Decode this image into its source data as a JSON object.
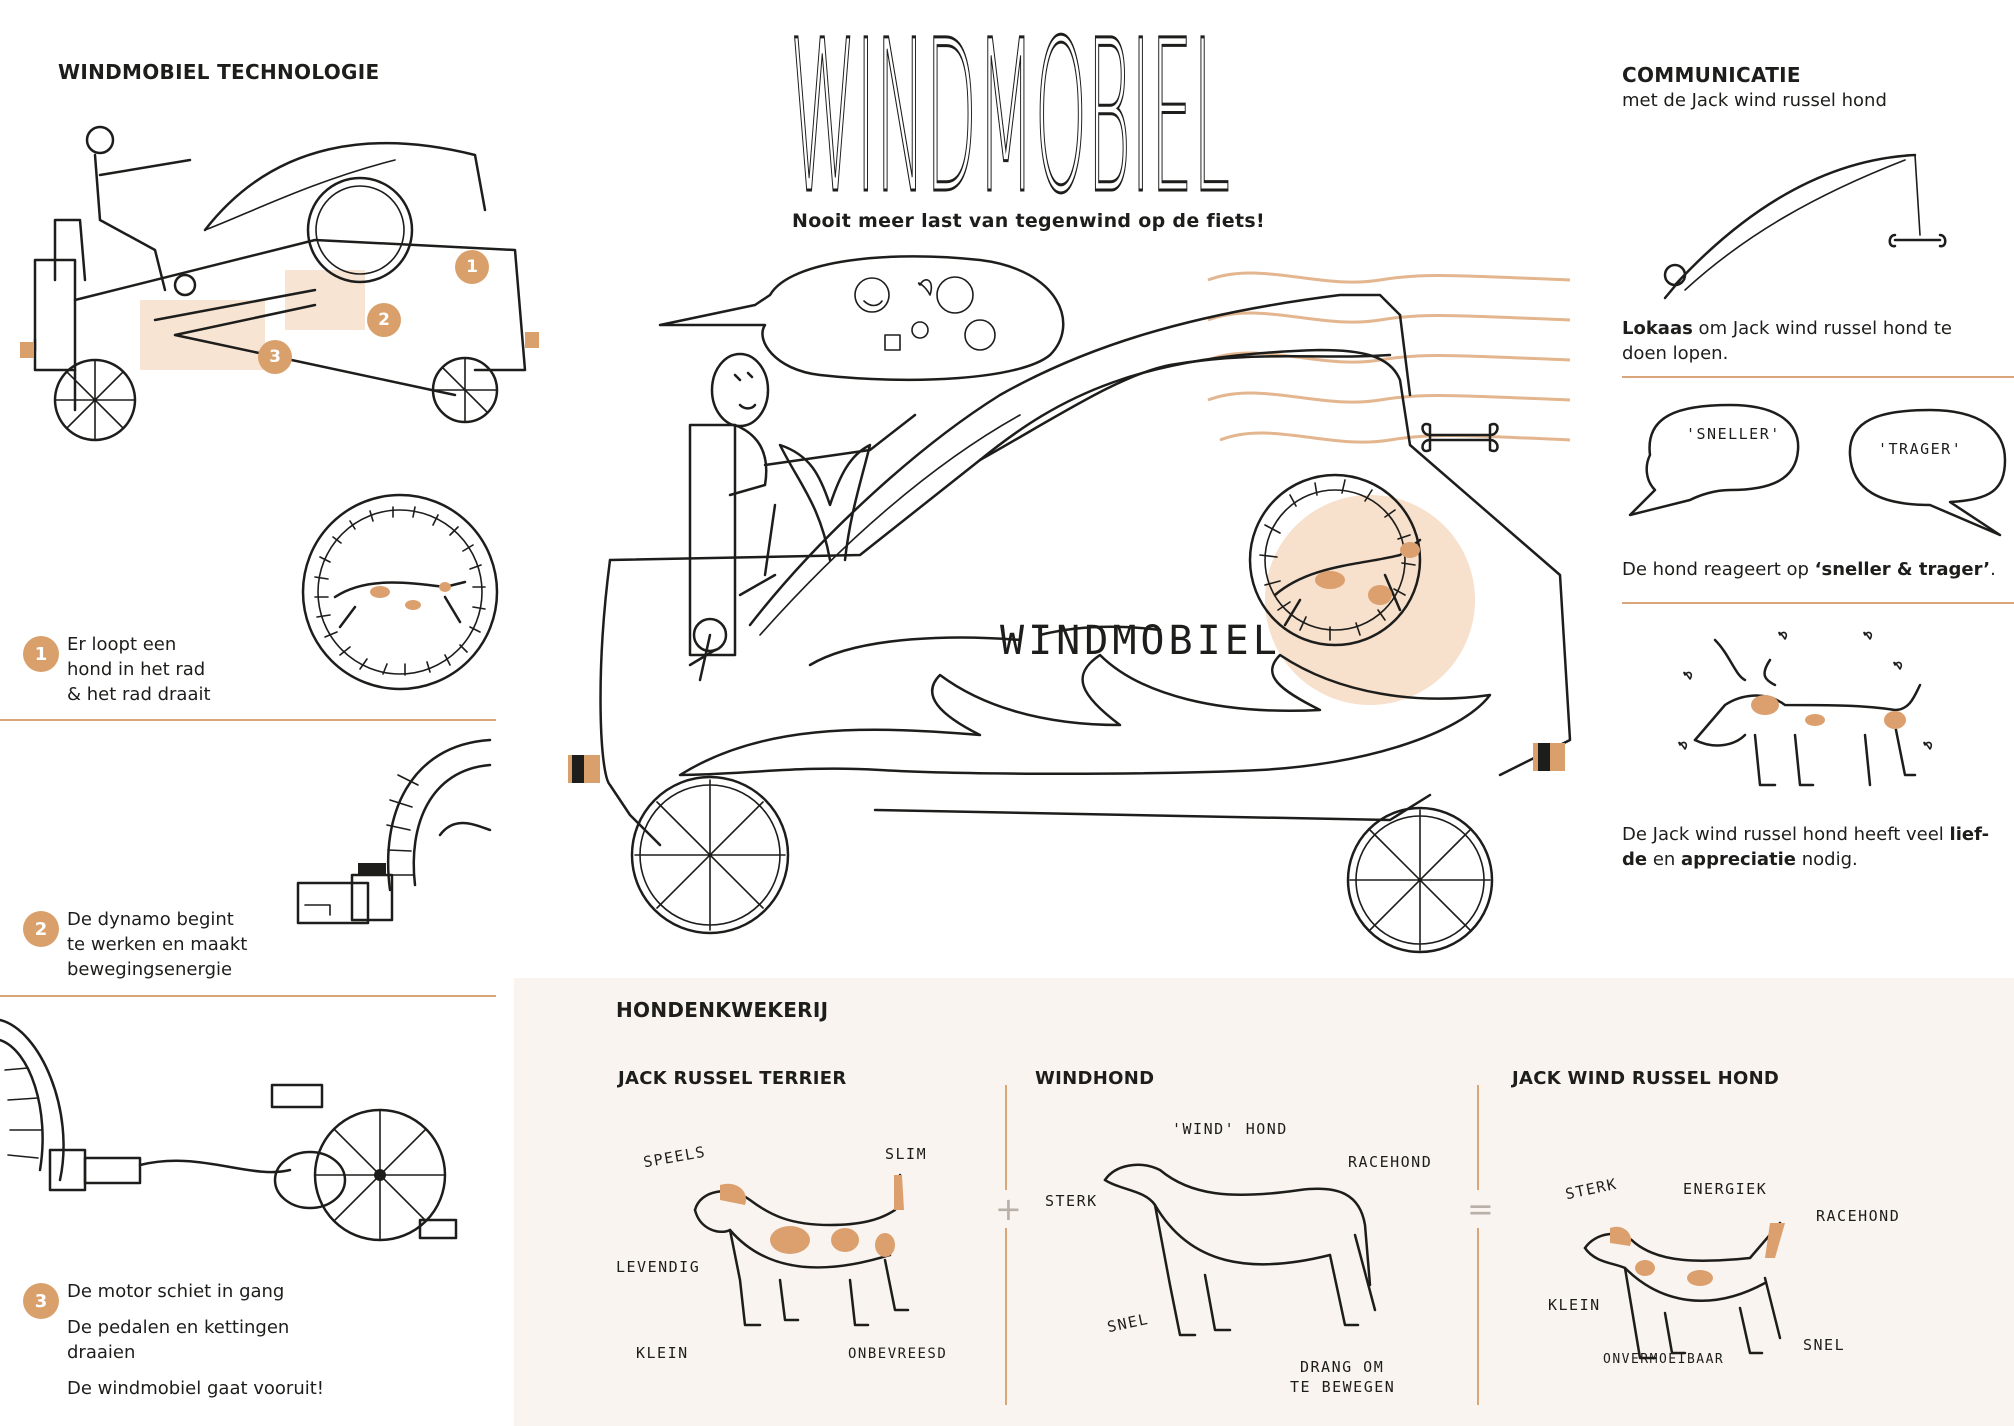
{
  "header": {
    "title": "WINDMOBIEL",
    "tagline": "Nooit meer last van tegenwind op de fiets!",
    "car_label": "WINDMOBIEL"
  },
  "technologie": {
    "heading": "WINDMOBIEL TECHNOLOGIE",
    "markers": [
      "1",
      "2",
      "3"
    ],
    "steps": [
      {
        "number": "1",
        "lines": [
          "Er loopt een",
          "hond in het rad",
          "& het rad draait"
        ]
      },
      {
        "number": "2",
        "lines": [
          "De dynamo begint",
          "te werken en maakt",
          "bewegingsenergie"
        ]
      },
      {
        "number": "3",
        "lines": [
          "De motor schiet in gang",
          "De pedalen en kettingen",
          "draaien",
          "De windmobiel gaat vooruit!"
        ]
      }
    ]
  },
  "communicatie": {
    "heading": "COMMUNICATIE",
    "subheading": "met de Jack wind russel hond",
    "lokaas_bold": "Lokaas",
    "lokaas_rest": " om Jack wind russel hond te",
    "lokaas_line2": "doen lopen.",
    "bubble_left": "'SNELLER'",
    "bubble_right": "'TRAGER'",
    "reageert_pre": "De hond reageert op ",
    "reageert_bold": "‘sneller & trager’",
    "reageert_post": ".",
    "liefde_pre": "De Jack wind russel hond heeft veel ",
    "liefde_bold1": "lief-",
    "liefde_bold2": "de",
    "liefde_mid": " en ",
    "liefde_bold3": "appreciatie",
    "liefde_post": " nodig."
  },
  "hondenkwekerij": {
    "heading": "HONDENKWEKERIJ",
    "plus": "+",
    "equals": "=",
    "breeds": [
      {
        "title": "JACK RUSSEL TERRIER",
        "labels": {
          "a": "SPEELS",
          "b": "SLIM",
          "c": "LEVENDIG",
          "d": "KLEIN",
          "e": "ONBEVREESD"
        }
      },
      {
        "title": "WINDHOND",
        "labels": {
          "a": "'WIND' HOND",
          "b": "RACEHOND",
          "c": "STERK",
          "d": "SNEL",
          "e1": "DRANG OM",
          "e2": "TE BEWEGEN"
        }
      },
      {
        "title": "JACK WIND RUSSEL HOND",
        "labels": {
          "a": "STERK",
          "b": "ENERGIEK",
          "c": "RACEHOND",
          "d": "KLEIN",
          "e": "ONVERMOEIBAAR",
          "f": "SNEL"
        }
      }
    ]
  },
  "colors": {
    "accent": "#d9a06b",
    "ink": "#1d1d1b",
    "panel": "#f9f4ef",
    "rule": "#d9a67a"
  }
}
